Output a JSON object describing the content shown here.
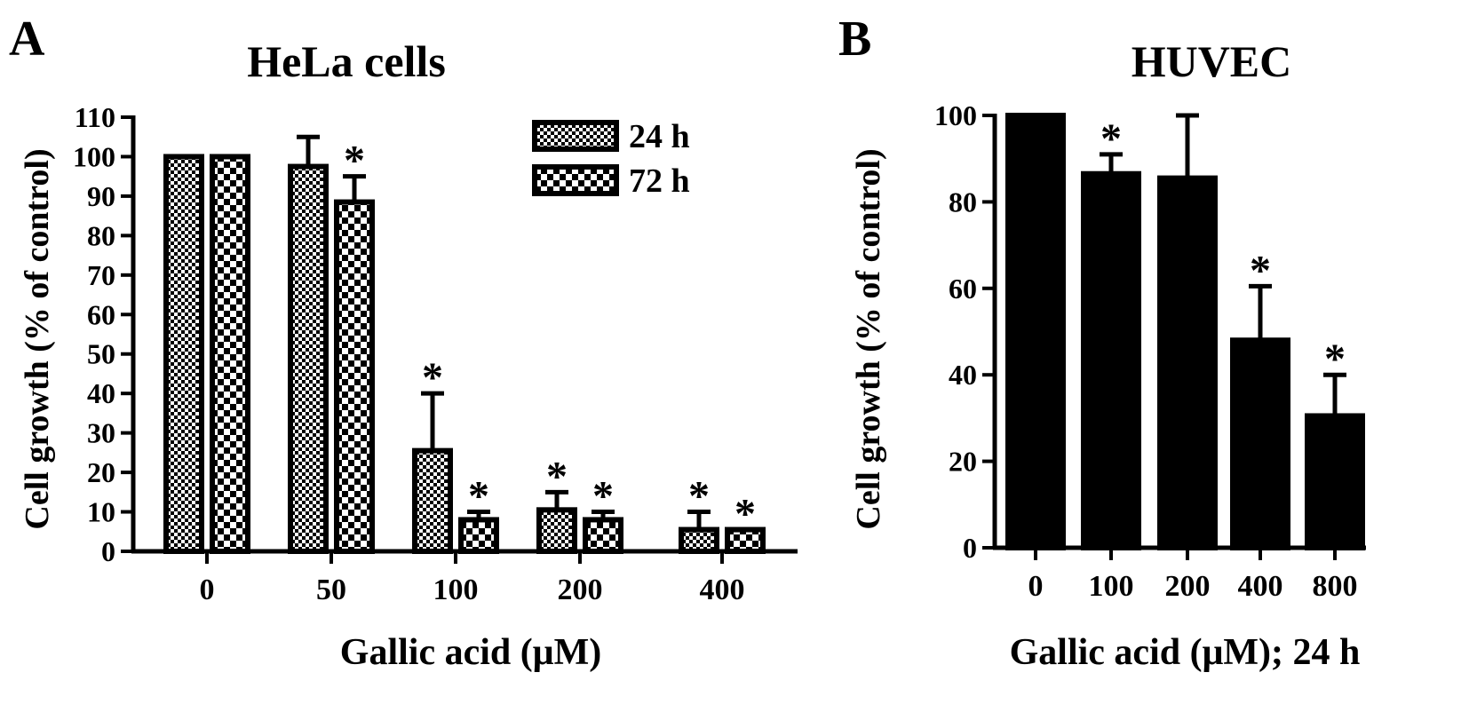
{
  "chart_data": [
    {
      "panel_label": "A",
      "type": "bar",
      "title": "HeLa cells",
      "xlabel": "Gallic acid (μM)",
      "ylabel": "Cell growth (% of control)",
      "categories": [
        "0",
        "50",
        "100",
        "200",
        "400"
      ],
      "ylim": [
        0,
        110
      ],
      "yticks": [
        0,
        10,
        20,
        30,
        40,
        50,
        60,
        70,
        80,
        90,
        100,
        110
      ],
      "grid": false,
      "legend_position": "top-right",
      "series": [
        {
          "name": "24 h",
          "pattern": "fine-checker",
          "values": [
            100,
            97.5,
            25.5,
            10.5,
            5.5
          ],
          "errors": [
            0,
            7.5,
            14.5,
            4.5,
            4.5
          ],
          "significant": [
            false,
            false,
            true,
            true,
            true
          ]
        },
        {
          "name": "72 h",
          "pattern": "coarse-checker",
          "values": [
            100,
            88.5,
            8.0,
            8.0,
            5.5
          ],
          "errors": [
            0,
            6.5,
            2.0,
            2.0,
            0
          ],
          "significant": [
            false,
            true,
            true,
            true,
            true
          ]
        }
      ],
      "annotation_symbol": "*"
    },
    {
      "panel_label": "B",
      "type": "bar",
      "title": "HUVEC",
      "xlabel": "Gallic acid (μM); 24 h",
      "ylabel": "Cell growth (% of control)",
      "categories": [
        "0",
        "100",
        "200",
        "400",
        "800"
      ],
      "ylim": [
        0,
        100
      ],
      "yticks": [
        0,
        20,
        40,
        60,
        80,
        100
      ],
      "grid": false,
      "series": [
        {
          "pattern": "solid",
          "values": [
            100,
            86.5,
            85.5,
            48.0,
            30.5
          ],
          "errors": [
            0,
            4.5,
            14.5,
            12.5,
            9.5
          ],
          "significant": [
            false,
            true,
            false,
            true,
            true
          ]
        }
      ],
      "annotation_symbol": "*"
    }
  ],
  "colors": {
    "ink": "#000000",
    "background": "#ffffff"
  }
}
